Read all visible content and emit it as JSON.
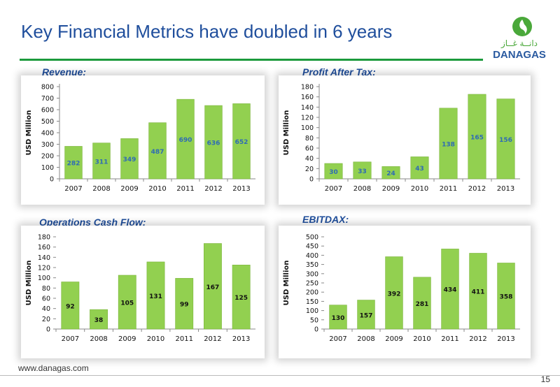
{
  "page": {
    "title": "Key Financial Metrics have doubled in 6 years",
    "logo_arabic": "دانــة غــاز",
    "logo_text": "DANAGAS",
    "footer_url": "www.danagas.com",
    "page_number": "15"
  },
  "colors": {
    "title": "#1f4e9c",
    "rule": "#1c9a3c",
    "bar": "#92d050",
    "bar_stroke": "#7ab43a",
    "value_label": "#2e6bb5",
    "logo_green": "#4aa83a",
    "logo_blue": "#2a5aa0"
  },
  "chart_data": [
    {
      "id": "revenue",
      "type": "bar",
      "title": "Revenue:",
      "ylabel": "USD Million",
      "categories": [
        "2007",
        "2008",
        "2009",
        "2010",
        "2011",
        "2012",
        "2013"
      ],
      "values": [
        282,
        311,
        349,
        487,
        690,
        636,
        652
      ],
      "value_labels": [
        "282",
        "311",
        "349",
        "487",
        "690",
        "636",
        "652"
      ],
      "ylim": [
        0,
        800
      ],
      "yticks": [
        0,
        100,
        200,
        300,
        400,
        500,
        600,
        700,
        800
      ],
      "grid": false,
      "label_style": "blue"
    },
    {
      "id": "profit",
      "type": "bar",
      "title": "Profit After Tax:",
      "ylabel": "USD Million",
      "categories": [
        "2007",
        "2008",
        "2009",
        "2010",
        "2011",
        "2012",
        "2013"
      ],
      "values": [
        30,
        33,
        24,
        43,
        138,
        165,
        156
      ],
      "value_labels": [
        "30",
        "33",
        "24",
        "43",
        "138",
        "165",
        "156"
      ],
      "ylim": [
        0,
        180
      ],
      "yticks": [
        0,
        20,
        40,
        60,
        80,
        100,
        120,
        140,
        160,
        180
      ],
      "grid": false,
      "label_style": "blue"
    },
    {
      "id": "opcash",
      "type": "bar",
      "title": "Operations Cash Flow:",
      "ylabel": "USD Million",
      "categories": [
        "2007",
        "2008",
        "2009",
        "2010",
        "2011",
        "2012",
        "2013"
      ],
      "values": [
        92,
        38,
        105,
        131,
        99,
        167,
        125
      ],
      "value_labels": [
        "92",
        "38",
        "105",
        "131",
        "99",
        "167",
        "125"
      ],
      "ylim": [
        0,
        180
      ],
      "yticks": [
        0,
        20,
        40,
        60,
        80,
        100,
        120,
        140,
        160,
        180
      ],
      "grid": false,
      "label_style": "black"
    },
    {
      "id": "ebitdax",
      "type": "bar",
      "title": "EBITDAX:",
      "ylabel": "USD Million",
      "categories": [
        "2007",
        "2008",
        "2009",
        "2010",
        "2011",
        "2012",
        "2013"
      ],
      "values": [
        130,
        157,
        392,
        281,
        434,
        411,
        358
      ],
      "value_labels": [
        "130",
        "157",
        "392",
        "281",
        "434",
        "411",
        "358"
      ],
      "ylim": [
        0,
        500
      ],
      "yticks": [
        0,
        50,
        100,
        150,
        200,
        250,
        300,
        350,
        400,
        450,
        500
      ],
      "grid": false,
      "label_style": "black"
    }
  ]
}
